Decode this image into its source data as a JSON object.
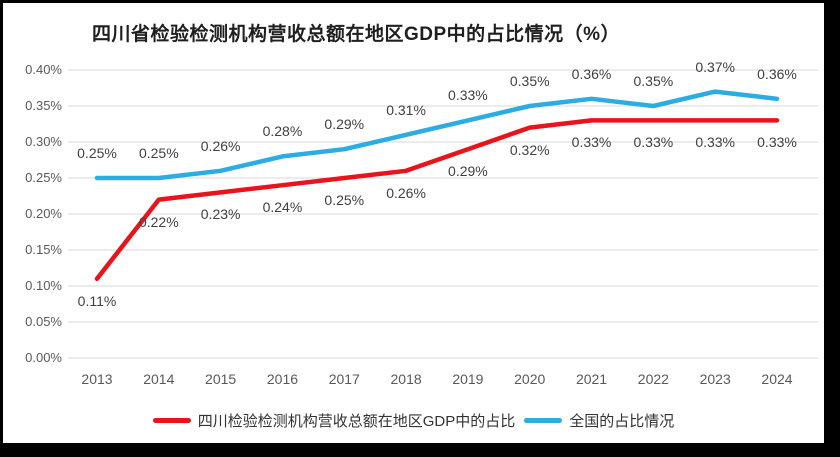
{
  "chart_data": {
    "type": "line",
    "title": "四川省检验检测机构营收总额在地区GDP中的占比情况（%）",
    "categories": [
      "2013",
      "2014",
      "2015",
      "2016",
      "2017",
      "2018",
      "2019",
      "2020",
      "2021",
      "2022",
      "2023",
      "2024"
    ],
    "series": [
      {
        "key": "sichuan",
        "name": "四川检验检测机构营收总额在地区GDP中的占比",
        "color": "#E9131B",
        "values": [
          0.11,
          0.22,
          0.23,
          0.24,
          0.25,
          0.26,
          0.29,
          0.32,
          0.33,
          0.33,
          0.33,
          0.33
        ],
        "labels": [
          "0.11%",
          "0.22%",
          "0.23%",
          "0.24%",
          "0.25%",
          "0.26%",
          "0.29%",
          "0.32%",
          "0.33%",
          "0.33%",
          "0.33%",
          "0.33%"
        ],
        "label_position": "below"
      },
      {
        "key": "national",
        "name": "全国的占比情况",
        "color": "#2BACE2",
        "values": [
          0.25,
          0.25,
          0.26,
          0.28,
          0.29,
          0.31,
          0.33,
          0.35,
          0.36,
          0.35,
          0.37,
          0.36
        ],
        "labels": [
          "0.25%",
          "0.25%",
          "0.26%",
          "0.28%",
          "0.29%",
          "0.31%",
          "0.33%",
          "0.35%",
          "0.36%",
          "0.35%",
          "0.37%",
          "0.36%"
        ],
        "label_position": "above"
      }
    ],
    "y_axis": {
      "tick_labels": [
        "0.00%",
        "0.05%",
        "0.10%",
        "0.15%",
        "0.20%",
        "0.25%",
        "0.30%",
        "0.35%",
        "0.40%"
      ],
      "min": 0,
      "max": 0.4,
      "unit": "%"
    },
    "grid": true,
    "legend_position": "bottom",
    "colors": {
      "gridline": "#D9D9D9",
      "axis_text": "#595959",
      "data_label_text": "#404040",
      "title_text": "#1F1F1F",
      "legend_text": "#333333",
      "frame_border": "#000000",
      "background": "#FFFFFF"
    }
  }
}
